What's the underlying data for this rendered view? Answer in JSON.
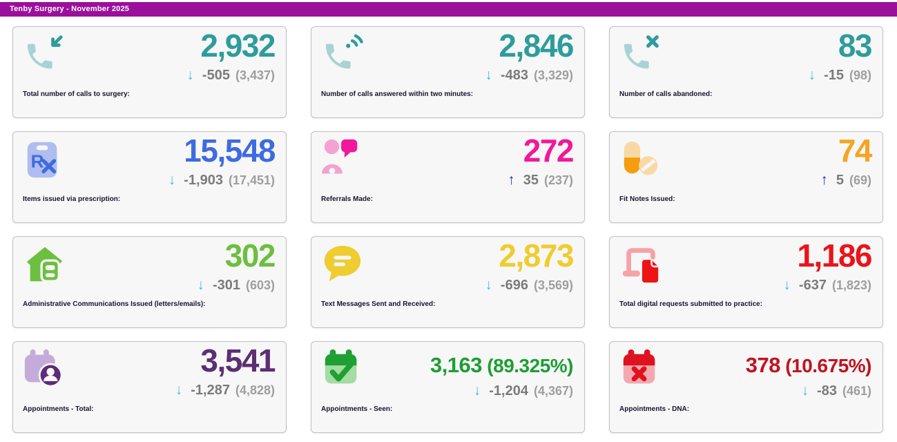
{
  "header": {
    "title": "Tenby Surgery - November 2025"
  },
  "colors": {
    "header_bg": "#9B109B",
    "arrow_down": "#3EBCE8",
    "arrow_up": "#2033CC",
    "change_text": "#7B7B7B",
    "previous_text": "#9E9E9E",
    "label_text": "#15152E",
    "card_bg": "#F7F7F7",
    "card_border": "#C0C0C0"
  },
  "cards": [
    {
      "label": "Total number of calls to surgery:",
      "value": "2,932",
      "direction": "down",
      "change": "-505",
      "previous": "(3,437)",
      "icon": "phone-incoming-icon",
      "value_color": "#2E9C9C",
      "icon_light": "#A9D3D3",
      "icon_accent": "#2E9C9C"
    },
    {
      "label": "Number of calls answered within two minutes:",
      "value": "2,846",
      "direction": "down",
      "change": "-483",
      "previous": "(3,329)",
      "icon": "phone-volume-icon",
      "value_color": "#2E9C9C",
      "icon_light": "#A9D3D3",
      "icon_accent": "#2E9C9C"
    },
    {
      "label": "Number of calls abandoned:",
      "value": "83",
      "direction": "down",
      "change": "-15",
      "previous": "(98)",
      "icon": "phone-x-icon",
      "value_color": "#2E9C9C",
      "icon_light": "#A9D3D3",
      "icon_accent": "#2E9C9C"
    },
    {
      "label": "Items issued via prescription:",
      "value": "15,548",
      "direction": "down",
      "change": "-1,903",
      "previous": "(17,451)",
      "icon": "prescription-icon",
      "value_color": "#3E6BE0",
      "icon_light": "#AFBDEF",
      "icon_accent": "#3E6BE0"
    },
    {
      "label": "Referrals Made:",
      "value": "272",
      "direction": "up",
      "change": "35",
      "previous": "(237)",
      "icon": "referral-icon",
      "value_color": "#F0189C",
      "icon_light": "#F2A3CF",
      "icon_accent": "#F0189C"
    },
    {
      "label": "Fit Notes Issued:",
      "value": "74",
      "direction": "up",
      "change": "5",
      "previous": "(69)",
      "icon": "pills-icon",
      "value_color": "#F5A424",
      "icon_light": "#F8D9A6",
      "icon_accent": "#F59D0E"
    },
    {
      "label": "Administrative Communications Issued (letters/emails):",
      "value": "302",
      "direction": "down",
      "change": "-301",
      "previous": "(603)",
      "icon": "admin-building-icon",
      "value_color": "#6CBF3F",
      "icon_light": "#6CBF3F",
      "icon_accent": "#6CBF3F"
    },
    {
      "label": "Text Messages Sent and Received:",
      "value": "2,873",
      "direction": "down",
      "change": "-696",
      "previous": "(3,569)",
      "icon": "chat-bubble-icon",
      "value_color": "#EFCC2F",
      "icon_light": "#EFCC2F",
      "icon_accent": "#EFCC2F"
    },
    {
      "label": "Total digital requests submitted to practice:",
      "value": "1,186",
      "direction": "down",
      "change": "-637",
      "previous": "(1,823)",
      "icon": "digital-request-icon",
      "value_color": "#E8151B",
      "icon_light": "#F4A3A6",
      "icon_accent": "#EE1414"
    },
    {
      "label": "Appointments - Total:",
      "value": "3,541",
      "direction": "down",
      "change": "-1,287",
      "previous": "(4,828)",
      "icon": "calendar-user-icon",
      "value_color": "#5C2F74",
      "icon_light": "#C5ABDA",
      "icon_accent": "#5E2B78"
    },
    {
      "label": "Appointments - Seen:",
      "value": "3,163",
      "percent": "(89.325%)",
      "direction": "down",
      "change": "-1,204",
      "previous": "(4,367)",
      "icon": "calendar-check-icon",
      "value_color": "#1D9E33",
      "icon_light": "#A4DCA4",
      "icon_accent": "#1FA032"
    },
    {
      "label": "Appointments - DNA:",
      "value": "378",
      "percent": "(10.675%)",
      "direction": "down",
      "change": "-83",
      "previous": "(461)",
      "icon": "calendar-x-icon",
      "value_color": "#C2121F",
      "icon_light": "#F2A9B0",
      "icon_accent": "#DF1220"
    }
  ]
}
